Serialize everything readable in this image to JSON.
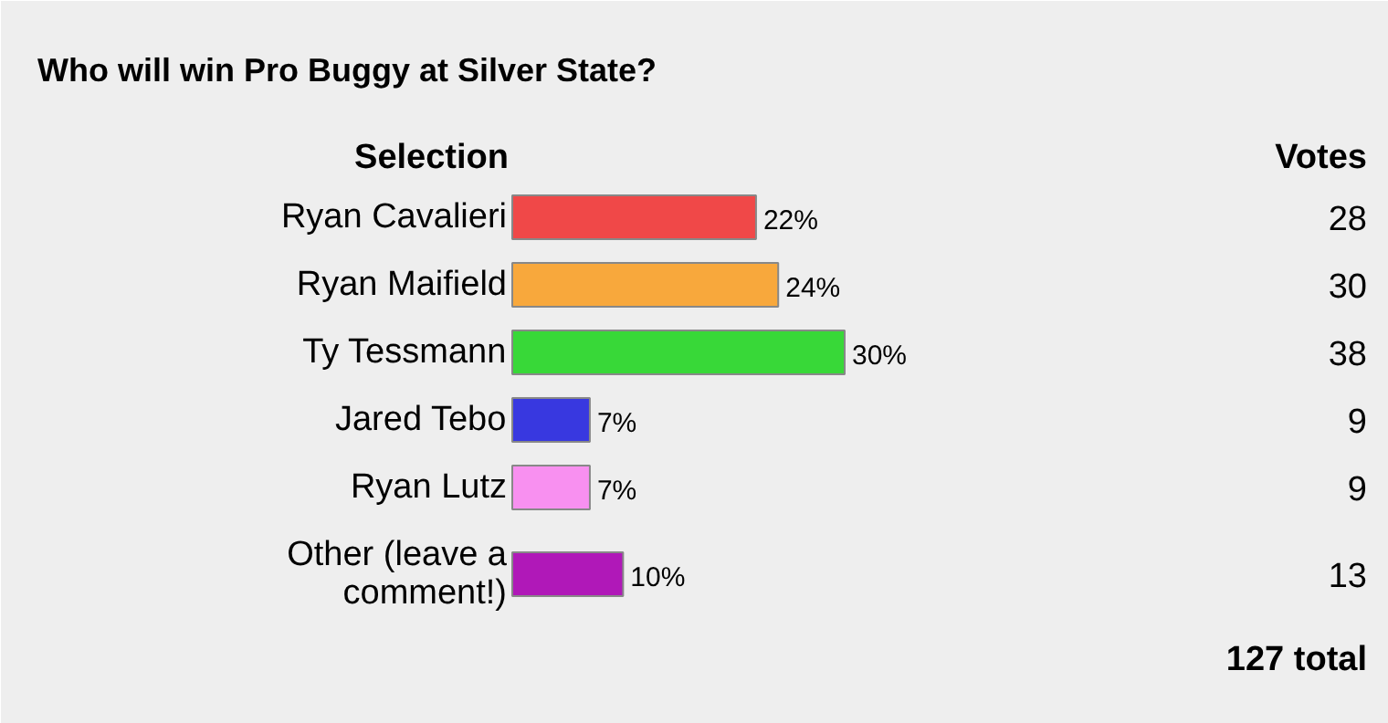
{
  "chart_data": {
    "type": "bar",
    "orientation": "horizontal",
    "title": "Who will win Pro Buggy at Silver State?",
    "ylabel": "Selection",
    "categories": [
      "Ryan Cavalieri",
      "Ryan Maifield",
      "Ty Tessmann",
      "Jared Tebo",
      "Ryan Lutz",
      "Other (leave a comment!)"
    ],
    "values": [
      22,
      24,
      30,
      7,
      7,
      10
    ],
    "value_labels": [
      "22%",
      "24%",
      "30%",
      "7%",
      "7%",
      "10%"
    ],
    "colors": [
      "#f04848",
      "#f8a83c",
      "#38d838",
      "#3838e0",
      "#f890f0",
      "#b018b8"
    ],
    "annotations": [
      "Votes",
      "28",
      "30",
      "38",
      "9",
      "9",
      "13",
      "127 total"
    ]
  }
}
